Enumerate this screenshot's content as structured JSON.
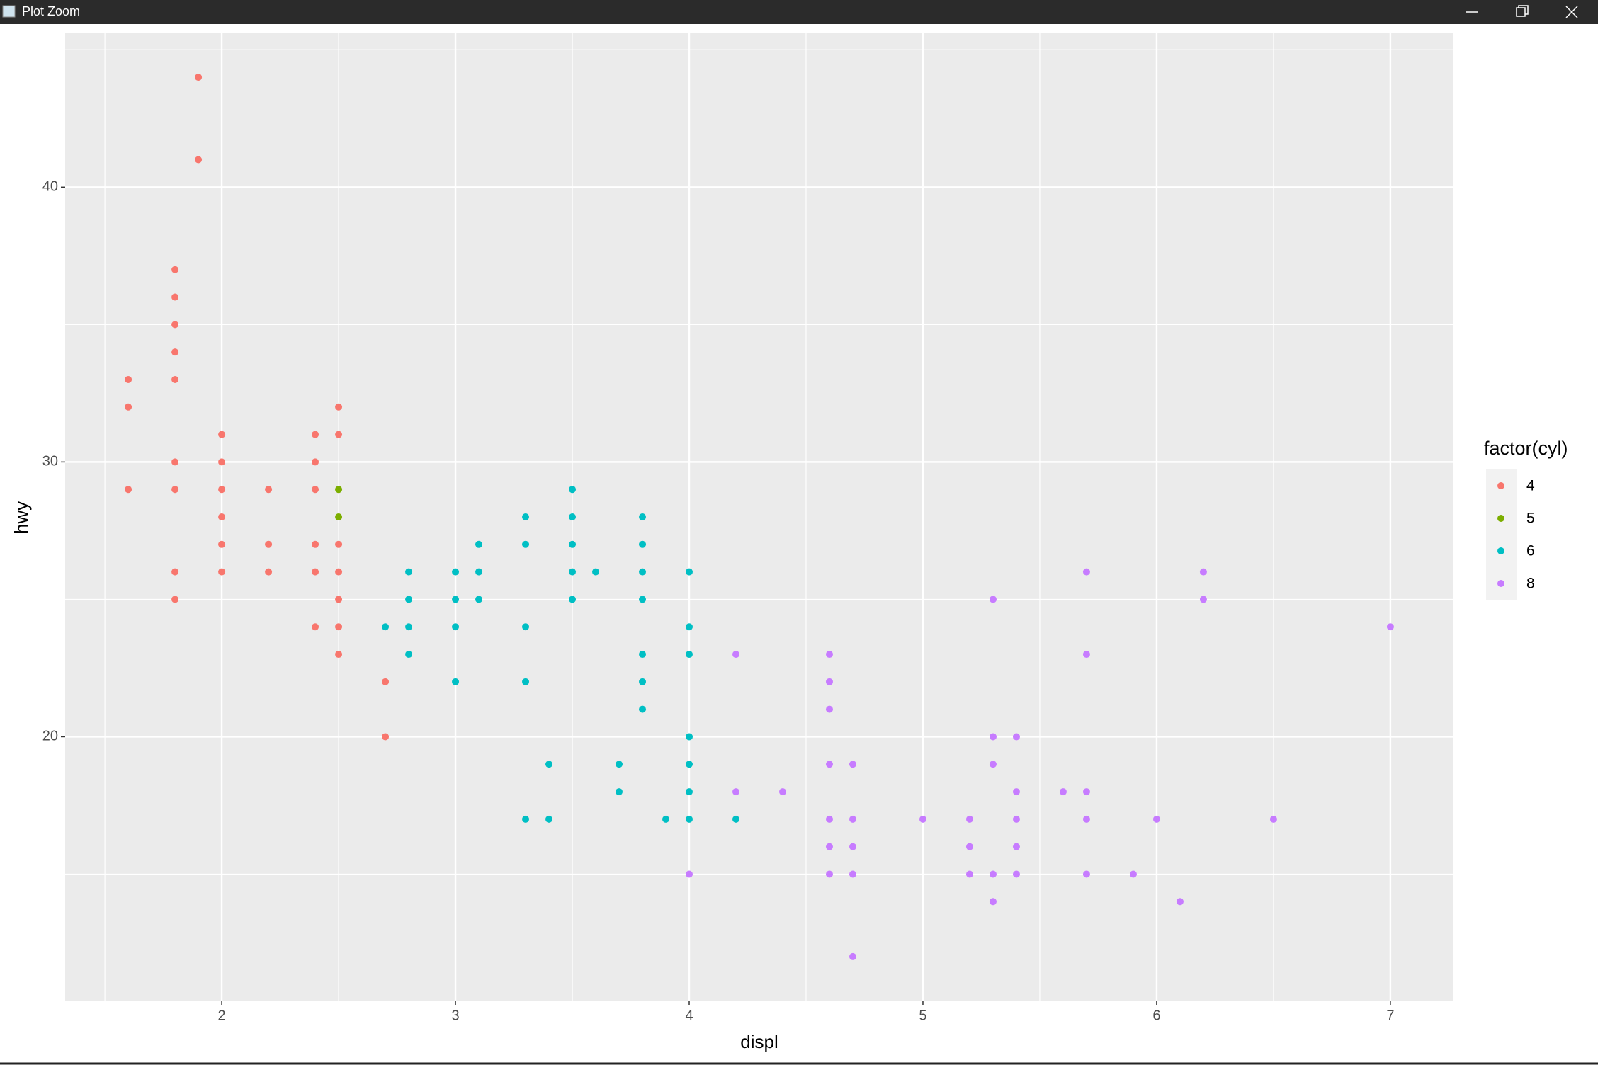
{
  "window": {
    "title": "Plot Zoom"
  },
  "chart_data": {
    "type": "scatter",
    "x_label": "displ",
    "y_label": "hwy",
    "legend_title": "factor(cyl)",
    "legend_position": "right",
    "grid": true,
    "xlim": [
      1.33,
      7.27
    ],
    "ylim": [
      10.4,
      45.6
    ],
    "xticks": [
      2,
      3,
      4,
      5,
      6,
      7
    ],
    "yticks": [
      20,
      30,
      40
    ],
    "series": [
      {
        "name": "4",
        "color": "#F8766D",
        "x": [
          1.6,
          1.6,
          1.6,
          1.8,
          1.8,
          1.8,
          1.8,
          1.8,
          1.8,
          1.8,
          1.8,
          1.8,
          1.9,
          1.9,
          2.0,
          2.0,
          2.0,
          2.0,
          2.0,
          2.0,
          2.2,
          2.2,
          2.2,
          2.4,
          2.4,
          2.4,
          2.4,
          2.4,
          2.4,
          2.5,
          2.5,
          2.5,
          2.5,
          2.5,
          2.5,
          2.5,
          2.7,
          2.7
        ],
        "values": [
          33,
          32,
          29,
          37,
          36,
          35,
          34,
          33,
          30,
          29,
          26,
          25,
          44,
          41,
          31,
          30,
          29,
          28,
          27,
          26,
          29,
          27,
          26,
          31,
          30,
          29,
          27,
          26,
          24,
          32,
          31,
          27,
          26,
          25,
          24,
          23,
          22,
          20
        ]
      },
      {
        "name": "5",
        "color": "#7CAE00",
        "x": [
          2.5,
          2.5
        ],
        "values": [
          29,
          28
        ]
      },
      {
        "name": "6",
        "color": "#00BFC4",
        "x": [
          2.7,
          2.8,
          2.8,
          2.8,
          2.8,
          3.0,
          3.0,
          3.0,
          3.0,
          3.1,
          3.1,
          3.1,
          3.3,
          3.3,
          3.3,
          3.3,
          3.3,
          3.4,
          3.4,
          3.5,
          3.5,
          3.5,
          3.5,
          3.5,
          3.6,
          3.7,
          3.7,
          3.8,
          3.8,
          3.8,
          3.8,
          3.8,
          3.8,
          3.8,
          3.9,
          4.0,
          4.0,
          4.0,
          4.0,
          4.0,
          4.0,
          4.0,
          4.2
        ],
        "values": [
          24,
          26,
          25,
          24,
          23,
          26,
          25,
          24,
          22,
          27,
          26,
          25,
          28,
          27,
          24,
          22,
          17,
          19,
          17,
          29,
          28,
          27,
          26,
          25,
          26,
          19,
          18,
          28,
          27,
          26,
          25,
          23,
          22,
          21,
          17,
          26,
          24,
          23,
          20,
          19,
          18,
          17,
          17
        ]
      },
      {
        "name": "8",
        "color": "#C77CFF",
        "x": [
          4.0,
          4.2,
          4.2,
          4.4,
          4.6,
          4.6,
          4.6,
          4.6,
          4.6,
          4.6,
          4.6,
          4.7,
          4.7,
          4.7,
          4.7,
          4.7,
          5.0,
          5.2,
          5.2,
          5.2,
          5.3,
          5.3,
          5.3,
          5.3,
          5.3,
          5.4,
          5.4,
          5.4,
          5.4,
          5.4,
          5.6,
          5.7,
          5.7,
          5.7,
          5.7,
          5.7,
          5.9,
          6.0,
          6.1,
          6.2,
          6.2,
          6.5,
          7.0
        ],
        "values": [
          15,
          23,
          18,
          18,
          23,
          22,
          21,
          19,
          17,
          16,
          15,
          19,
          17,
          16,
          15,
          12,
          17,
          17,
          16,
          15,
          25,
          20,
          19,
          15,
          14,
          20,
          18,
          17,
          16,
          15,
          18,
          26,
          23,
          18,
          17,
          15,
          15,
          17,
          14,
          26,
          25,
          17,
          24
        ]
      }
    ]
  }
}
